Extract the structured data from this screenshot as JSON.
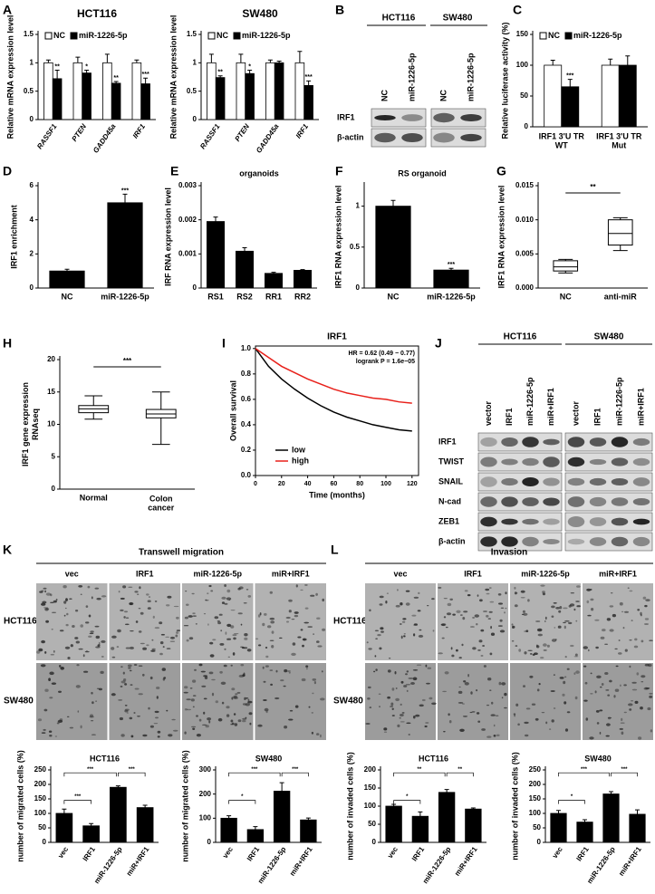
{
  "chart_data": [
    {
      "type": "bar",
      "panel": "A",
      "title": "HCT116",
      "ylabel": "Relative mRNA expression level",
      "legend": true,
      "categories": [
        "RASSF1",
        "PTEN",
        "GADD45a",
        "IRF1"
      ],
      "series": [
        {
          "name": "NC",
          "color": "#ffffff",
          "values": [
            1,
            1,
            1,
            1
          ],
          "errors": [
            0.05,
            0.1,
            0.15,
            0.05
          ]
        },
        {
          "name": "miR-1226-5p",
          "color": "#000000",
          "values": [
            0.72,
            0.82,
            0.64,
            0.63
          ],
          "errors": [
            0.15,
            0.05,
            0.03,
            0.1
          ],
          "stars": [
            "**",
            "*",
            "**",
            "***"
          ]
        }
      ],
      "ylim": [
        0,
        1.5
      ],
      "yticks": [
        0,
        0.5,
        1,
        1.5
      ]
    },
    {
      "type": "bar",
      "title": "SW480",
      "ylabel": "Relative mRNA expression level",
      "legend": true,
      "categories": [
        "RASSF1",
        "PTEN",
        "GADD45a",
        "IRF1"
      ],
      "series": [
        {
          "name": "NC",
          "color": "#ffffff",
          "values": [
            1,
            1,
            1,
            1
          ],
          "errors": [
            0.15,
            0.15,
            0.05,
            0.2
          ]
        },
        {
          "name": "miR-1226-5p",
          "color": "#000000",
          "values": [
            0.74,
            0.81,
            1.0,
            0.6
          ],
          "errors": [
            0.03,
            0.06,
            0.03,
            0.08
          ],
          "stars": [
            "**",
            "*",
            null,
            "***"
          ]
        }
      ],
      "ylim": [
        0,
        1.5
      ],
      "yticks": [
        0,
        0.5,
        1,
        1.5
      ]
    },
    {
      "type": "bar",
      "panel": "C",
      "ylabel": "Relative luciferase activity (%)",
      "legend": true,
      "categories": [
        [
          "IRF1 3'U TR",
          "WT"
        ],
        [
          "IRF1 3'U TR",
          "Mut"
        ]
      ],
      "series": [
        {
          "name": "NC",
          "color": "#ffffff",
          "values": [
            100,
            100
          ],
          "errors": [
            8,
            10
          ]
        },
        {
          "name": "miR-1226-5p",
          "color": "#000000",
          "values": [
            65,
            100
          ],
          "errors": [
            12,
            15
          ],
          "stars": [
            "***",
            null
          ]
        }
      ],
      "ylim": [
        0,
        150
      ],
      "yticks": [
        0,
        50,
        100,
        150
      ]
    },
    {
      "type": "bar",
      "panel": "D",
      "ylabel": "IRF1 enrichment",
      "categories": [
        "NC",
        "miR-1226-5p"
      ],
      "values": [
        1,
        5
      ],
      "errors": [
        0.1,
        0.5
      ],
      "stars": [
        null,
        "***"
      ],
      "color": "#000000",
      "ylim": [
        0,
        6
      ],
      "yticks": [
        0,
        2,
        4,
        6
      ]
    },
    {
      "type": "bar",
      "panel": "E",
      "title": "organoids",
      "ylabel": "IRF RNA expression level",
      "categories": [
        "RS1",
        "RS2",
        "RR1",
        "RR2"
      ],
      "values": [
        0.00195,
        0.00108,
        0.00043,
        0.00052
      ],
      "errors": [
        0.00013,
        0.0001,
        3e-05,
        2e-05
      ],
      "color": "#000000",
      "ylim": [
        0,
        0.003
      ],
      "yticks": [
        0,
        0.001,
        0.002,
        0.003
      ]
    },
    {
      "type": "bar",
      "panel": "F",
      "title": "RS organoid",
      "ylabel": "IRF1 RNA expression level",
      "categories": [
        "NC",
        "miR-1226-5p"
      ],
      "values": [
        1,
        0.22
      ],
      "errors": [
        0.07,
        0.02
      ],
      "stars": [
        null,
        "***"
      ],
      "color": "#000000",
      "ylim": [
        0,
        1.25
      ],
      "yticks": [
        0,
        0.5,
        1
      ]
    },
    {
      "type": "box",
      "panel": "G",
      "ylabel": "IRF1 RNA expression level",
      "categories": [
        "NC",
        "anti-miR"
      ],
      "boxes": [
        [
          0.0022,
          0.0025,
          0.0031,
          0.004,
          0.0042
        ],
        [
          0.0055,
          0.0063,
          0.008,
          0.01,
          0.0103
        ]
      ],
      "annotation": "**",
      "ylim": [
        0,
        0.015
      ],
      "yticks": [
        {
          "value": 0,
          "label": "0.000"
        },
        {
          "value": 0.005,
          "label": "0.005"
        },
        {
          "value": 0.01,
          "label": "0.010"
        },
        {
          "value": 0.015,
          "label": "0.015"
        }
      ]
    },
    {
      "type": "box",
      "panel": "H",
      "ylabel": [
        "IRF1 gene expression",
        "RNAseq"
      ],
      "categories": [
        "Normal",
        [
          "Colon",
          "cancer"
        ]
      ],
      "boxes": [
        [
          10.8,
          11.8,
          12.4,
          12.9,
          14.4
        ],
        [
          6.9,
          11.0,
          11.6,
          12.3,
          15.0
        ]
      ],
      "annotation": "***",
      "ylim": [
        0,
        20
      ],
      "yticks": [
        0,
        5,
        10,
        15,
        20
      ]
    },
    {
      "type": "line",
      "panel": "I",
      "title": "IRF1",
      "xlabel": "Time (months)",
      "ylabel": "Overall survival",
      "legend": true,
      "x": [
        0,
        10,
        20,
        30,
        40,
        50,
        60,
        70,
        80,
        90,
        100,
        110,
        120
      ],
      "series": [
        {
          "name": "low",
          "color": "#000000",
          "values": [
            1,
            0.86,
            0.76,
            0.68,
            0.61,
            0.55,
            0.5,
            0.46,
            0.43,
            0.4,
            0.38,
            0.36,
            0.35
          ]
        },
        {
          "name": "high",
          "color": "#e8201a",
          "values": [
            1,
            0.93,
            0.86,
            0.81,
            0.76,
            0.72,
            0.68,
            0.65,
            0.63,
            0.61,
            0.6,
            0.58,
            0.57
          ]
        }
      ],
      "annotations": [
        "HR = 0.62 (0.49 − 0.77)",
        "logrank P = 1.6e−05"
      ],
      "xlim": [
        0,
        125
      ],
      "xticks": [
        0,
        20,
        40,
        60,
        80,
        100,
        120
      ],
      "ylim": [
        0,
        1.02
      ],
      "yticks": [
        {
          "value": 0,
          "label": "0.0"
        },
        {
          "value": 0.2,
          "label": "0.2"
        },
        {
          "value": 0.4,
          "label": "0.4"
        },
        {
          "value": 0.6,
          "label": "0.6"
        },
        {
          "value": 0.8,
          "label": "0.8"
        },
        {
          "value": 1,
          "label": "1.0"
        }
      ]
    },
    {
      "type": "bar",
      "title": "HCT116",
      "ylabel": "number of migrated cells (%)",
      "categories": [
        "vec",
        "IRF1",
        "miR-1226-5p",
        "miR+IRF1"
      ],
      "values": [
        100,
        57,
        190,
        120
      ],
      "errors": [
        15,
        8,
        5,
        8
      ],
      "color": "#000000",
      "comparisons": [
        "***",
        "***",
        "***"
      ],
      "ylim": [
        0,
        250
      ],
      "yticks": [
        0,
        50,
        100,
        150,
        200,
        250
      ]
    },
    {
      "type": "bar",
      "title": "SW480",
      "ylabel": "number of migrated cells (%)",
      "categories": [
        "vec",
        "IRF1",
        "miR-1226-5p",
        "miR+IRF1"
      ],
      "values": [
        100,
        53,
        212,
        93
      ],
      "errors": [
        10,
        12,
        35,
        8
      ],
      "color": "#000000",
      "comparisons": [
        "*",
        "***",
        "***"
      ],
      "ylim": [
        0,
        300
      ],
      "yticks": [
        0,
        100,
        200,
        300
      ]
    },
    {
      "type": "bar",
      "title": "HCT116",
      "ylabel": "number of invaded cells (%)",
      "categories": [
        "vec",
        "IRF1",
        "miR-1226-5p",
        "miR+IRF1"
      ],
      "values": [
        100,
        72,
        138,
        92
      ],
      "errors": [
        5,
        12,
        8,
        3
      ],
      "color": "#000000",
      "comparisons": [
        "*",
        "**",
        "**"
      ],
      "ylim": [
        0,
        200
      ],
      "yticks": [
        0,
        50,
        100,
        150,
        200
      ]
    },
    {
      "type": "bar",
      "title": "SW480",
      "ylabel": "number of invaded cells (%)",
      "categories": [
        "vec",
        "IRF1",
        "miR-1226-5p",
        "miR+IRF1"
      ],
      "values": [
        100,
        70,
        167,
        97
      ],
      "errors": [
        10,
        8,
        8,
        15
      ],
      "color": "#000000",
      "comparisons": [
        "*",
        "***",
        "***"
      ],
      "ylim": [
        0,
        250
      ],
      "yticks": [
        0,
        50,
        100,
        150,
        200,
        250
      ]
    }
  ],
  "blots": [
    {
      "panel": "B",
      "groups": [
        "HCT116",
        "SW480"
      ],
      "lanes": [
        "NC",
        "miR-1226-5p",
        "NC",
        "miR-1226-5p"
      ],
      "rows": [
        "IRF1",
        "β-actin"
      ]
    },
    {
      "panel": "J",
      "groups": [
        "HCT116",
        "SW480"
      ],
      "lanes": [
        "vector",
        "IRF1",
        "miR-1226-5p",
        "miR+IRF1",
        "vector",
        "IRF1",
        "miR-1226-5p",
        "miR+IRF1"
      ],
      "rows": [
        "IRF1",
        "TWIST",
        "SNAIL",
        "N-cad",
        "ZEB1",
        "β-actin"
      ]
    }
  ],
  "micrographs": [
    {
      "panel": "K",
      "title": "Transwell migration",
      "columns": [
        "vec",
        "IRF1",
        "miR-1226-5p",
        "miR+IRF1"
      ],
      "rows": [
        "HCT116",
        "SW480"
      ]
    },
    {
      "panel": "L",
      "title": "Invasion",
      "columns": [
        "vec",
        "IRF1",
        "miR-1226-5p",
        "miR+IRF1"
      ],
      "rows": [
        "HCT116",
        "SW480"
      ]
    }
  ]
}
